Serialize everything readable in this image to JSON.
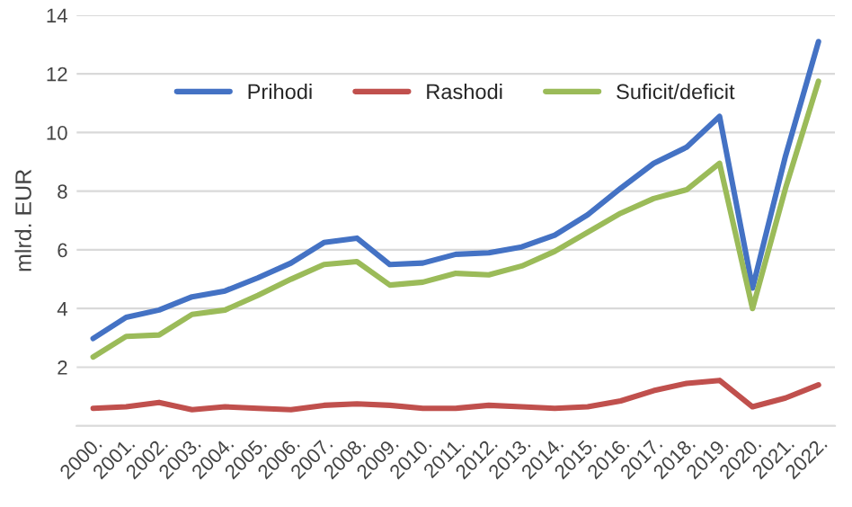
{
  "chart_data": {
    "type": "line",
    "ylabel": "mlrd. EUR",
    "categories": [
      "2000.",
      "2001.",
      "2002.",
      "2003.",
      "2004.",
      "2005.",
      "2006.",
      "2007.",
      "2008.",
      "2009.",
      "2010.",
      "2011.",
      "2012.",
      "2013.",
      "2014.",
      "2015.",
      "2016.",
      "2017.",
      "2018.",
      "2019.",
      "2020.",
      "2021.",
      "2022."
    ],
    "series": [
      {
        "name": "Prihodi",
        "color": "#4472c4",
        "values": [
          2.98,
          3.7,
          3.95,
          4.4,
          4.6,
          5.05,
          5.55,
          6.25,
          6.4,
          5.5,
          5.55,
          5.85,
          5.9,
          6.1,
          6.5,
          7.2,
          8.1,
          8.95,
          9.5,
          10.55,
          4.7,
          9.2,
          13.1
        ]
      },
      {
        "name": "Rashodi",
        "color": "#c0504d",
        "values": [
          0.6,
          0.65,
          0.8,
          0.55,
          0.65,
          0.6,
          0.55,
          0.7,
          0.75,
          0.7,
          0.6,
          0.6,
          0.7,
          0.65,
          0.6,
          0.65,
          0.85,
          1.2,
          1.45,
          1.55,
          0.65,
          0.95,
          1.4
        ]
      },
      {
        "name": "Suficit/deficit",
        "color": "#9bbb59",
        "values": [
          2.35,
          3.05,
          3.1,
          3.8,
          3.95,
          4.45,
          5.0,
          5.5,
          5.6,
          4.8,
          4.9,
          5.2,
          5.15,
          5.45,
          5.95,
          6.6,
          7.25,
          7.75,
          8.05,
          8.95,
          4.0,
          8.1,
          11.75
        ]
      }
    ],
    "ylim": [
      0,
      14
    ],
    "yticks": [
      {
        "value": 0,
        "label": null
      },
      2,
      4,
      6,
      8,
      10,
      12,
      14
    ],
    "grid": "y",
    "legend": "top",
    "line_style": "solid",
    "marker": "none"
  }
}
